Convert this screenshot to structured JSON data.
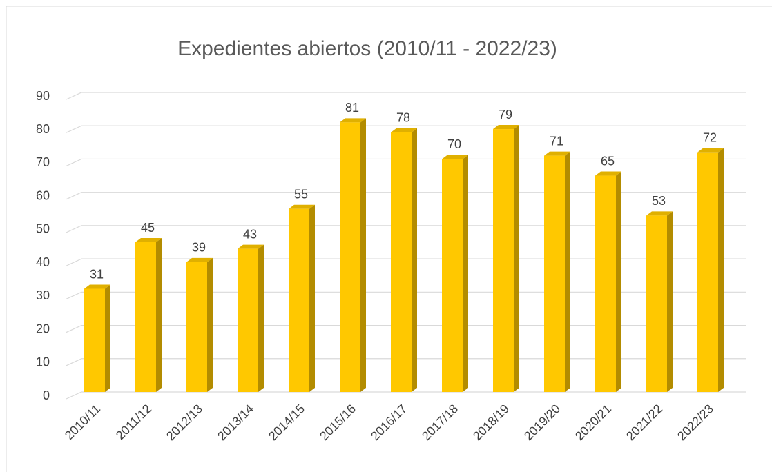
{
  "chart_data": {
    "type": "bar3d",
    "title": "Expedientes abiertos (2010/11 - 2022/23)",
    "categories": [
      "2010/11",
      "2011/12",
      "2012/13",
      "2013/14",
      "2014/15",
      "2015/16",
      "2016/17",
      "2017/18",
      "2018/19",
      "2019/20",
      "2020/21",
      "2021/22",
      "2022/23"
    ],
    "values": [
      31,
      45,
      39,
      43,
      55,
      81,
      78,
      70,
      79,
      71,
      65,
      53,
      72
    ],
    "color": "#ffc800",
    "ylim": [
      0,
      90
    ],
    "yticks": [
      0,
      10,
      20,
      30,
      40,
      50,
      60,
      70,
      80,
      90
    ],
    "grid": true
  }
}
